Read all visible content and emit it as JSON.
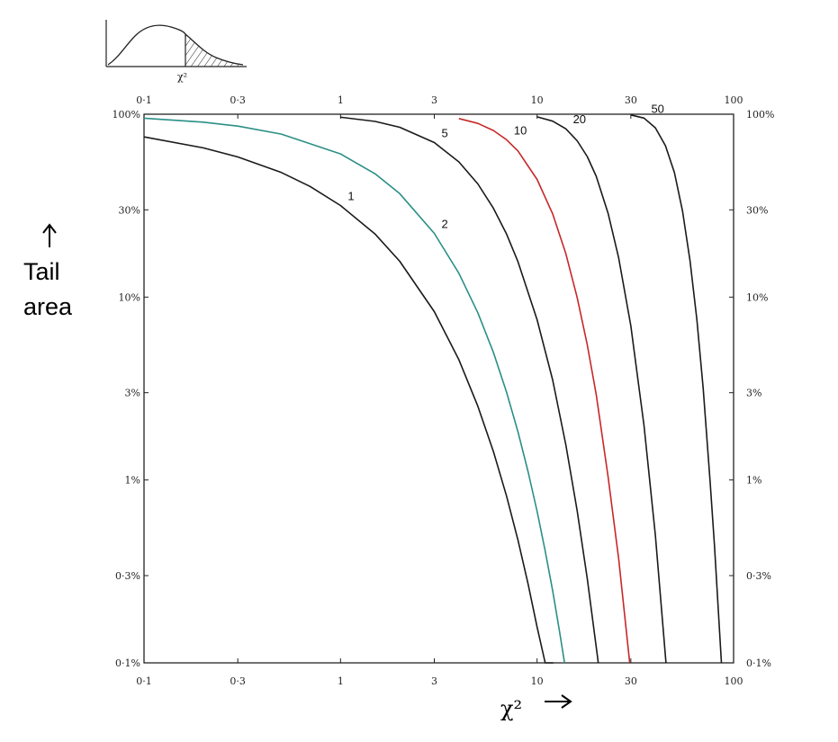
{
  "chart_data": {
    "type": "line",
    "title": "",
    "xlabel": "χ²",
    "ylabel_lines": [
      "Tail",
      "area"
    ],
    "x_scale": "log",
    "y_scale": "log",
    "xlim": [
      0.1,
      100
    ],
    "ylim": [
      0.001,
      1
    ],
    "x_ticks": [
      {
        "value": 0.1,
        "label": "0·1"
      },
      {
        "value": 0.3,
        "label": "0·3"
      },
      {
        "value": 1,
        "label": "1"
      },
      {
        "value": 3,
        "label": "3"
      },
      {
        "value": 10,
        "label": "10"
      },
      {
        "value": 30,
        "label": "30"
      },
      {
        "value": 100,
        "label": "100"
      }
    ],
    "y_ticks": [
      {
        "value": 1,
        "label": "100%"
      },
      {
        "value": 0.3,
        "label": "30%"
      },
      {
        "value": 0.1,
        "label": "10%"
      },
      {
        "value": 0.03,
        "label": "3%"
      },
      {
        "value": 0.01,
        "label": "1%"
      },
      {
        "value": 0.003,
        "label": "0·3%"
      },
      {
        "value": 0.001,
        "label": "0·1%"
      }
    ],
    "grid": false,
    "legend": "none",
    "series": [
      {
        "name": "1",
        "color": "#1a1a1a",
        "x": [
          0.1,
          0.2,
          0.3,
          0.5,
          0.7,
          1,
          1.5,
          2,
          3,
          4,
          5,
          6,
          7,
          8,
          9,
          10,
          11,
          12.1
        ],
        "y": [
          0.752,
          0.655,
          0.584,
          0.48,
          0.403,
          0.317,
          0.221,
          0.157,
          0.0833,
          0.0455,
          0.0253,
          0.0143,
          0.00815,
          0.00468,
          0.0027,
          0.00157,
          0.00091,
          0.001
        ]
      },
      {
        "name": "2",
        "color": "#2a8f86",
        "x": [
          0.1,
          0.2,
          0.3,
          0.5,
          1,
          1.5,
          2,
          3,
          4,
          5,
          6,
          7,
          8,
          9,
          10,
          11,
          12,
          13,
          13.8
        ],
        "y": [
          0.951,
          0.905,
          0.861,
          0.779,
          0.607,
          0.472,
          0.368,
          0.223,
          0.135,
          0.0821,
          0.0498,
          0.0302,
          0.0183,
          0.0111,
          0.00674,
          0.00409,
          0.00248,
          0.0015,
          0.001
        ]
      },
      {
        "name": "5",
        "color": "#1a1a1a",
        "x": [
          1,
          1.5,
          2,
          3,
          4,
          5,
          6,
          7,
          8,
          10,
          12,
          14,
          16,
          18,
          20.5
        ],
        "y": [
          0.963,
          0.913,
          0.849,
          0.7,
          0.549,
          0.416,
          0.306,
          0.221,
          0.156,
          0.0752,
          0.0352,
          0.0156,
          0.0068,
          0.0029,
          0.001
        ]
      },
      {
        "name": "10",
        "color": "#c62828",
        "x": [
          4,
          5,
          6,
          7,
          8,
          10,
          12,
          14,
          16,
          18,
          20,
          23,
          26,
          29.6
        ],
        "y": [
          0.947,
          0.891,
          0.815,
          0.725,
          0.629,
          0.44,
          0.285,
          0.173,
          0.0996,
          0.055,
          0.0293,
          0.0104,
          0.00372,
          0.001
        ]
      },
      {
        "name": "20",
        "color": "#1a1a1a",
        "x": [
          10,
          12,
          14,
          16,
          18,
          20,
          23,
          26,
          30,
          35,
          40,
          45.3
        ],
        "y": [
          0.968,
          0.916,
          0.832,
          0.716,
          0.587,
          0.458,
          0.287,
          0.164,
          0.0699,
          0.0198,
          0.00499,
          0.001
        ]
      },
      {
        "name": "50",
        "color": "#1a1a1a",
        "x": [
          30,
          35,
          40,
          45,
          50,
          55,
          60,
          65,
          70,
          76,
          80,
          86.7
        ],
        "y": [
          0.991,
          0.953,
          0.843,
          0.673,
          0.479,
          0.295,
          0.158,
          0.0755,
          0.0318,
          0.00967,
          0.00436,
          0.001
        ]
      }
    ],
    "inset": {
      "description_label": "χ²"
    }
  }
}
